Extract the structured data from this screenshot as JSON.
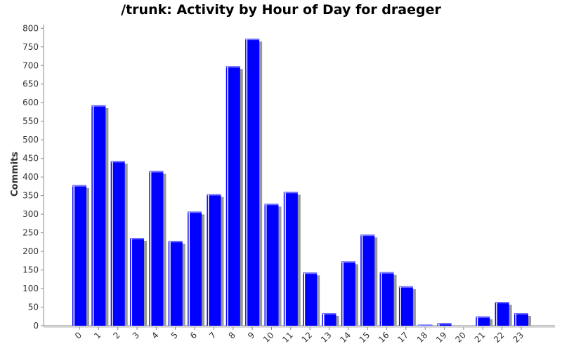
{
  "chart_data": {
    "type": "bar",
    "title": "/trunk: Activity by Hour of Day for draeger",
    "xlabel": "",
    "ylabel": "Commits",
    "categories": [
      "0",
      "1",
      "2",
      "3",
      "4",
      "5",
      "6",
      "7",
      "8",
      "9",
      "10",
      "11",
      "12",
      "13",
      "14",
      "15",
      "16",
      "17",
      "18",
      "19",
      "20",
      "21",
      "22",
      "23"
    ],
    "values": [
      378,
      593,
      443,
      236,
      416,
      228,
      307,
      354,
      698,
      772,
      328,
      360,
      143,
      34,
      173,
      245,
      144,
      106,
      3,
      7,
      0,
      25,
      64,
      34
    ],
    "ylim": [
      0,
      810
    ],
    "yticks": [
      0,
      50,
      100,
      150,
      200,
      250,
      300,
      350,
      400,
      450,
      500,
      550,
      600,
      650,
      700,
      750,
      800
    ],
    "bar_color": "#0000ff",
    "shadow_color": "#999999",
    "grid": false,
    "legend": "none"
  }
}
